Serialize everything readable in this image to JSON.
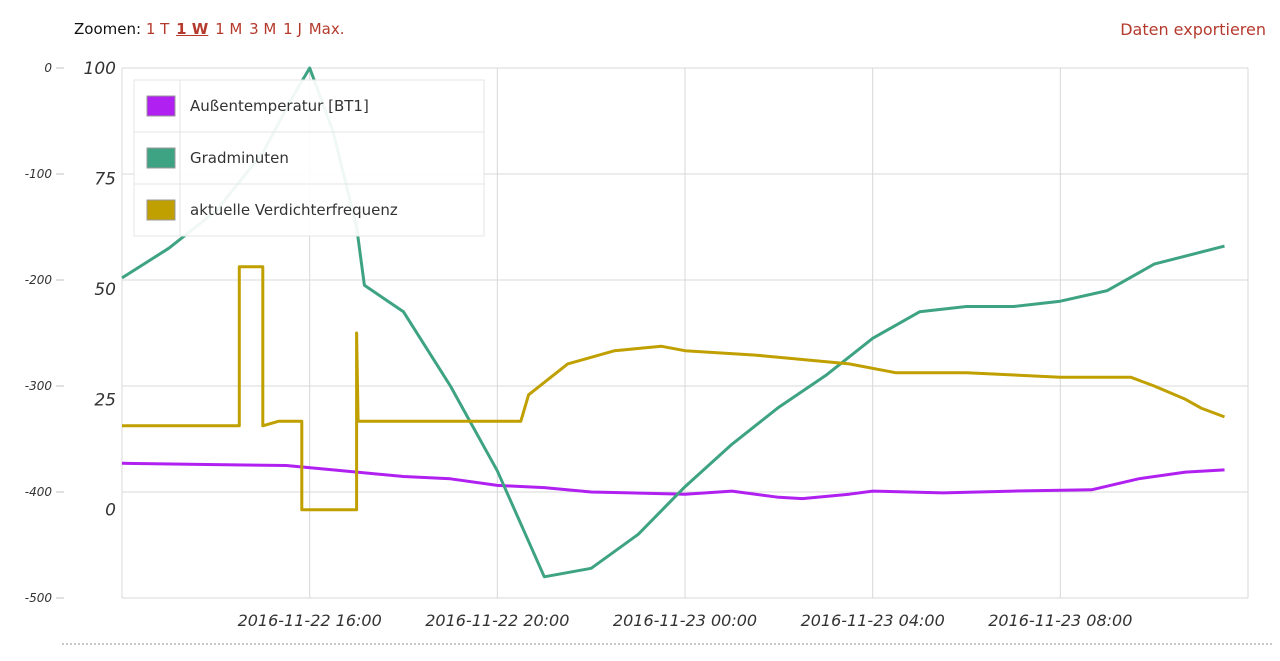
{
  "toolbar": {
    "zoom_label": "Zoomen:",
    "zoom_options": [
      "1 T",
      "1 W",
      "1 M",
      "3 M",
      "1 J",
      "Max."
    ],
    "active_zoom": "1 W",
    "export_label": "Daten exportieren"
  },
  "colors": {
    "link": "#b53a2e",
    "outside_temp": "#b020f0",
    "degree_minutes": "#3ea383",
    "compressor_freq": "#c0a000"
  },
  "chart_data": {
    "type": "line",
    "x_tick_labels": [
      "2016-11-22 16:00",
      "2016-11-22 20:00",
      "2016-11-23 00:00",
      "2016-11-23 04:00",
      "2016-11-23 08:00"
    ],
    "xlim": [
      "2016-11-22 12:00",
      "2016-11-23 12:00"
    ],
    "y_left": {
      "ticks": [
        "0",
        "-100",
        "-200",
        "-300",
        "-400",
        "-500"
      ],
      "ylim": [
        -500,
        0
      ]
    },
    "y_right": {
      "ticks": [
        "100",
        "75",
        "50",
        "25",
        "0"
      ],
      "ylim": [
        -20,
        100
      ]
    },
    "legend": {
      "position": "top-left"
    },
    "grid": true,
    "series": [
      {
        "name": "Außentemperatur [BT1]",
        "axis": "right",
        "points": [
          [
            "2016-11-22 12:00",
            10.5
          ],
          [
            "2016-11-22 14:00",
            10.2
          ],
          [
            "2016-11-22 15:30",
            10.0
          ],
          [
            "2016-11-22 16:30",
            9.0
          ],
          [
            "2016-11-22 18:00",
            7.5
          ],
          [
            "2016-11-22 19:00",
            7.0
          ],
          [
            "2016-11-22 20:00",
            5.5
          ],
          [
            "2016-11-22 21:00",
            5.0
          ],
          [
            "2016-11-22 22:00",
            4.0
          ],
          [
            "2016-11-23 00:00",
            3.5
          ],
          [
            "2016-11-23 01:00",
            4.2
          ],
          [
            "2016-11-23 02:00",
            2.8
          ],
          [
            "2016-11-23 02:30",
            2.5
          ],
          [
            "2016-11-23 03:30",
            3.5
          ],
          [
            "2016-11-23 04:00",
            4.2
          ],
          [
            "2016-11-23 05:30",
            3.8
          ],
          [
            "2016-11-23 07:00",
            4.2
          ],
          [
            "2016-11-23 08:40",
            4.5
          ],
          [
            "2016-11-23 09:40",
            7.0
          ],
          [
            "2016-11-23 10:40",
            8.5
          ],
          [
            "2016-11-23 11:30",
            9.0
          ]
        ]
      },
      {
        "name": "Gradminuten",
        "axis": "left",
        "points": [
          [
            "2016-11-22 12:00",
            -198
          ],
          [
            "2016-11-22 13:00",
            -170
          ],
          [
            "2016-11-22 14:00",
            -135
          ],
          [
            "2016-11-22 15:00",
            -80
          ],
          [
            "2016-11-22 15:40",
            -25
          ],
          [
            "2016-11-22 16:00",
            0
          ],
          [
            "2016-11-22 16:30",
            -60
          ],
          [
            "2016-11-22 17:00",
            -150
          ],
          [
            "2016-11-22 17:10",
            -205
          ],
          [
            "2016-11-22 18:00",
            -230
          ],
          [
            "2016-11-22 19:00",
            -300
          ],
          [
            "2016-11-22 20:00",
            -380
          ],
          [
            "2016-11-22 21:00",
            -480
          ],
          [
            "2016-11-22 22:00",
            -472
          ],
          [
            "2016-11-22 23:00",
            -440
          ],
          [
            "2016-11-23 00:00",
            -395
          ],
          [
            "2016-11-23 01:00",
            -355
          ],
          [
            "2016-11-23 02:00",
            -320
          ],
          [
            "2016-11-23 03:00",
            -290
          ],
          [
            "2016-11-23 04:00",
            -255
          ],
          [
            "2016-11-23 05:00",
            -230
          ],
          [
            "2016-11-23 06:00",
            -225
          ],
          [
            "2016-11-23 07:00",
            -225
          ],
          [
            "2016-11-23 08:00",
            -220
          ],
          [
            "2016-11-23 09:00",
            -210
          ],
          [
            "2016-11-23 10:00",
            -185
          ],
          [
            "2016-11-23 11:30",
            -168
          ]
        ]
      },
      {
        "name": "aktuelle Verdichterfrequenz",
        "axis": "right",
        "points": [
          [
            "2016-11-22 12:00",
            19
          ],
          [
            "2016-11-22 14:30",
            19
          ],
          [
            "2016-11-22 14:30",
            55
          ],
          [
            "2016-11-22 15:00",
            55
          ],
          [
            "2016-11-22 15:00",
            19
          ],
          [
            "2016-11-22 15:20",
            20
          ],
          [
            "2016-11-22 15:50",
            20
          ],
          [
            "2016-11-22 15:50",
            0
          ],
          [
            "2016-11-22 17:00",
            0
          ],
          [
            "2016-11-22 17:00",
            40
          ],
          [
            "2016-11-22 17:02",
            20
          ],
          [
            "2016-11-22 19:00",
            20
          ],
          [
            "2016-11-22 20:30",
            20
          ],
          [
            "2016-11-22 20:40",
            26
          ],
          [
            "2016-11-22 21:30",
            33
          ],
          [
            "2016-11-22 22:30",
            36
          ],
          [
            "2016-11-22 23:30",
            37
          ],
          [
            "2016-11-23 00:00",
            36
          ],
          [
            "2016-11-23 01:30",
            35
          ],
          [
            "2016-11-23 02:30",
            34
          ],
          [
            "2016-11-23 03:30",
            33
          ],
          [
            "2016-11-23 04:30",
            31
          ],
          [
            "2016-11-23 06:00",
            31
          ],
          [
            "2016-11-23 08:00",
            30
          ],
          [
            "2016-11-23 09:30",
            30
          ],
          [
            "2016-11-23 10:00",
            28
          ],
          [
            "2016-11-23 10:40",
            25
          ],
          [
            "2016-11-23 11:00",
            23
          ],
          [
            "2016-11-23 11:30",
            21
          ]
        ]
      }
    ]
  }
}
